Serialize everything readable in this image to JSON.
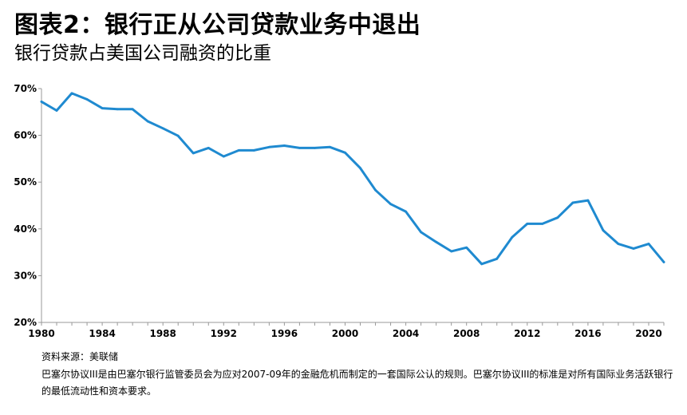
{
  "title": "图表2：银行正从公司贷款业务中退出",
  "subtitle": "银行贷款占美国公司融资的比重",
  "source": "资料来源：美联储",
  "note": "巴塞尔协议III是由巴塞尔银行监管委员会为应对2007-09年的金融危机而制定的一套国际公认的规则。巴塞尔协议III的标准是对所有国际业务活跃银行的最低流动性和资本要求。",
  "colors": {
    "line": "#1f8ad0",
    "axis": "#999999",
    "text": "#000000"
  },
  "chart_data": {
    "type": "line",
    "title": "银行贷款占美国公司融资的比重",
    "xlabel": "",
    "ylabel": "",
    "xlim": [
      1980,
      2021
    ],
    "ylim": [
      20,
      70
    ],
    "grid": false,
    "x_ticks": [
      "1980",
      "1984",
      "1988",
      "1992",
      "1996",
      "2000",
      "2004",
      "2008",
      "2012",
      "2016",
      "2020"
    ],
    "y_ticks": [
      "20%",
      "30%",
      "40%",
      "50%",
      "60%",
      "70%"
    ],
    "series": [
      {
        "x": [
          1980,
          1981,
          1982,
          1983,
          1984,
          1985,
          1986,
          1987,
          1988,
          1989,
          1990,
          1991,
          1992,
          1993,
          1994,
          1995,
          1996,
          1997,
          1998,
          1999,
          2000,
          2001,
          2002,
          2003,
          2004,
          2005,
          2006,
          2007,
          2008,
          2009,
          2010,
          2011,
          2012,
          2013,
          2014,
          2015,
          2016,
          2017,
          2018,
          2019,
          2020,
          2021
        ],
        "values": [
          67.2,
          65.3,
          69.0,
          67.7,
          65.8,
          65.6,
          65.6,
          63.0,
          61.5,
          59.9,
          56.2,
          57.3,
          55.5,
          56.8,
          56.8,
          57.5,
          57.8,
          57.3,
          57.3,
          57.5,
          56.3,
          53.0,
          48.3,
          45.3,
          43.7,
          39.3,
          37.2,
          35.2,
          36.0,
          32.5,
          33.6,
          38.2,
          41.1,
          41.1,
          42.4,
          45.6,
          46.1,
          39.7,
          36.8,
          35.8,
          36.8,
          32.9
        ]
      }
    ]
  }
}
